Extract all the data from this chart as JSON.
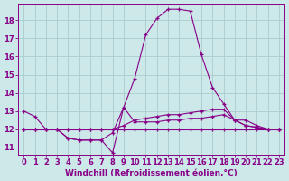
{
  "background_color": "#cce8e8",
  "plot_bg_color": "#cce8e8",
  "line_color": "#880088",
  "grid_color": "#aacccc",
  "xlabel": "Windchill (Refroidissement éolien,°C)",
  "xlabel_fontsize": 6.5,
  "tick_fontsize": 6,
  "xlim": [
    -0.5,
    23.5
  ],
  "ylim": [
    10.6,
    18.9
  ],
  "yticks": [
    11,
    12,
    13,
    14,
    15,
    16,
    17,
    18
  ],
  "xticks": [
    0,
    1,
    2,
    3,
    4,
    5,
    6,
    7,
    8,
    9,
    10,
    11,
    12,
    13,
    14,
    15,
    16,
    17,
    18,
    19,
    20,
    21,
    22,
    23
  ],
  "line1_x": [
    0,
    1,
    2,
    3,
    4,
    5,
    6,
    7,
    8,
    9,
    10,
    11,
    12,
    13,
    14,
    15,
    16,
    17,
    18,
    19,
    20,
    21,
    22,
    23
  ],
  "line1_y": [
    13.0,
    12.7,
    12.0,
    12.0,
    11.5,
    11.4,
    11.4,
    11.4,
    10.7,
    13.2,
    14.8,
    17.2,
    18.1,
    18.6,
    18.6,
    18.5,
    16.1,
    14.3,
    13.4,
    12.5,
    12.2,
    12.1,
    12.0,
    12.0
  ],
  "line2_x": [
    0,
    1,
    2,
    3,
    4,
    5,
    6,
    7,
    8,
    9,
    10,
    11,
    12,
    13,
    14,
    15,
    16,
    17,
    18,
    19,
    20,
    21,
    22,
    23
  ],
  "line2_y": [
    12.0,
    12.0,
    12.0,
    12.0,
    12.0,
    12.0,
    12.0,
    12.0,
    12.0,
    12.2,
    12.5,
    12.6,
    12.7,
    12.8,
    12.8,
    12.9,
    13.0,
    13.1,
    13.1,
    12.5,
    12.5,
    12.2,
    12.0,
    12.0
  ],
  "line3_x": [
    0,
    1,
    2,
    3,
    4,
    5,
    6,
    7,
    8,
    9,
    10,
    11,
    12,
    13,
    14,
    15,
    16,
    17,
    18,
    19,
    20,
    21,
    22,
    23
  ],
  "line3_y": [
    12.0,
    12.0,
    12.0,
    12.0,
    12.0,
    12.0,
    12.0,
    12.0,
    12.0,
    12.0,
    12.0,
    12.0,
    12.0,
    12.0,
    12.0,
    12.0,
    12.0,
    12.0,
    12.0,
    12.0,
    12.0,
    12.0,
    12.0,
    12.0
  ],
  "line4_x": [
    0,
    1,
    2,
    3,
    4,
    5,
    6,
    7,
    8,
    9,
    10,
    11,
    12,
    13,
    14,
    15,
    16,
    17,
    18,
    19,
    20,
    21,
    22,
    23
  ],
  "line4_y": [
    12.0,
    12.0,
    12.0,
    12.0,
    11.5,
    11.4,
    11.4,
    11.4,
    11.8,
    13.2,
    12.4,
    12.4,
    12.4,
    12.5,
    12.5,
    12.6,
    12.6,
    12.7,
    12.8,
    12.5,
    12.2,
    12.1,
    12.0,
    12.0
  ]
}
